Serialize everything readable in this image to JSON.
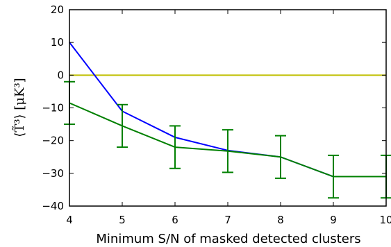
{
  "chart_data": {
    "type": "line",
    "title": "",
    "xlabel": "Minimum S/N of masked detected clusters",
    "ylabel": "⟨T̃³⟩ [μK³]",
    "xlim": [
      4,
      10
    ],
    "ylim": [
      -40,
      20
    ],
    "x_ticks": [
      4,
      5,
      6,
      7,
      8,
      9,
      10
    ],
    "y_ticks": [
      -40,
      -30,
      -20,
      -10,
      0,
      10,
      20
    ],
    "x_tick_labels": [
      "4",
      "5",
      "6",
      "7",
      "8",
      "9",
      "10"
    ],
    "y_tick_labels": [
      "−40",
      "−30",
      "−20",
      "−10",
      "0",
      "10",
      "20"
    ],
    "grid": false,
    "legend": "none",
    "reference_line": {
      "y": 0,
      "color": "#bfbf00"
    },
    "series": [
      {
        "color": "#0000ff",
        "x": [
          4,
          5,
          6,
          7,
          8,
          9,
          10
        ],
        "y": [
          10,
          -11,
          -19,
          -23,
          -25,
          -31,
          -31
        ]
      },
      {
        "color": "#008000",
        "x": [
          4,
          5,
          6,
          7,
          8,
          9,
          10
        ],
        "y": [
          -8.5,
          -15.5,
          -22,
          -23.2,
          -25,
          -31,
          -31
        ],
        "yerr": [
          6.5,
          6.5,
          6.5,
          6.5,
          6.5,
          6.5,
          6.5
        ]
      }
    ]
  }
}
